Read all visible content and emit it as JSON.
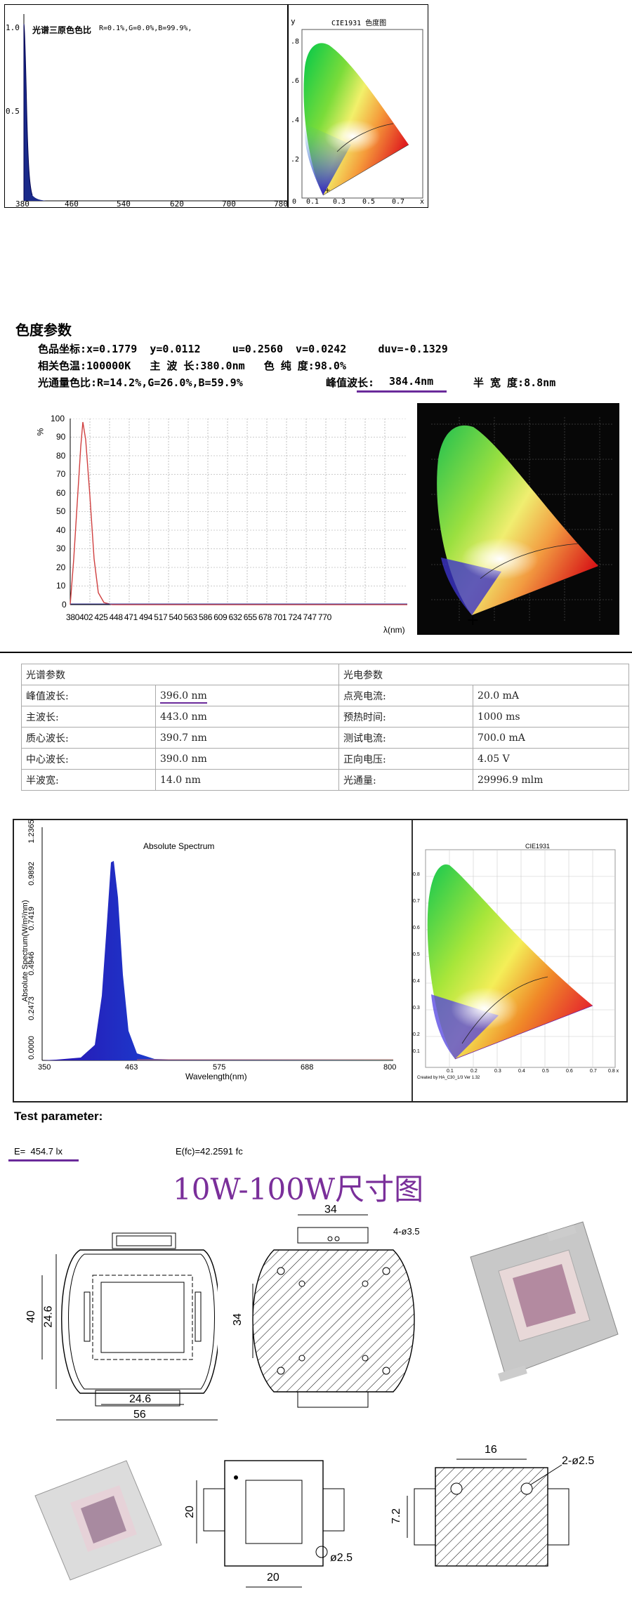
{
  "section1": {
    "spectrum": {
      "title": "光谱三原色色比",
      "ratio": "R=0.1%,G=0.0%,B=99.9%,",
      "y_ticks": [
        "1.0",
        "0.5"
      ],
      "x_ticks": [
        "380",
        "460",
        "540",
        "620",
        "700",
        "780"
      ]
    },
    "cie": {
      "title": "CIE1931 色度图",
      "y_axis_label": "y",
      "x_axis_label": "x",
      "y_ticks": [
        ".8",
        ".6",
        ".4",
        ".2"
      ],
      "x_ticks": [
        "0",
        "0.1",
        "0.3",
        "0.5",
        "0.7"
      ]
    }
  },
  "color_params": {
    "heading": "色度参数",
    "row1": "色品坐标:x=0.1779  y=0.0112     u=0.2560  v=0.0242     duv=-0.1329",
    "row2": "相关色温:100000K   主 波 长:380.0nm   色 纯 度:98.0%",
    "row3_a": "光通量色比:R=14.2%,G=26.0%,B=59.9%",
    "row3_b_label": "峰值波长:",
    "row3_b_value": "384.4nm",
    "row3_c": "半 宽 度:8.8nm"
  },
  "section2": {
    "y_label": "%",
    "x_label": "λ(nm)",
    "y_ticks": [
      "100",
      "90",
      "80",
      "70",
      "60",
      "50",
      "40",
      "30",
      "20",
      "10",
      "0"
    ],
    "x_ticks": [
      "380",
      "402",
      "425",
      "448",
      "471",
      "494",
      "517",
      "540",
      "563",
      "586",
      "609",
      "632",
      "655",
      "678",
      "701",
      "724",
      "747",
      "770"
    ]
  },
  "param_table": {
    "left_header": "光谱参数",
    "right_header": "光电参数",
    "rows": [
      {
        "l_label": "峰值波长:",
        "l_value": "396.0  nm",
        "r_label": "点亮电流:",
        "r_value": "20.0  mA"
      },
      {
        "l_label": "主波长:",
        "l_value": "443.0  nm",
        "r_label": "预热时间:",
        "r_value": "1000  ms"
      },
      {
        "l_label": "质心波长:",
        "l_value": "390.7  nm",
        "r_label": "测试电流:",
        "r_value": "700.0  mA"
      },
      {
        "l_label": "中心波长:",
        "l_value": "390.0  nm",
        "r_label": "正向电压:",
        "r_value": "4.05  V"
      },
      {
        "l_label": "半波宽:",
        "l_value": "14.0  nm",
        "r_label": "光通量:",
        "r_value": "29996.9  mlm"
      }
    ]
  },
  "section3": {
    "spectrum_title": "Absolute Spectrum",
    "y_label": "Absolute Spectrum(W/m²/nm)",
    "x_label": "Wavelength(nm)",
    "y_ticks": [
      "0.0000",
      "0.2473",
      "0.4946",
      "0.7419",
      "0.9892",
      "1.2365"
    ],
    "x_ticks": [
      "350",
      "463",
      "575",
      "688",
      "800"
    ],
    "cie_title": "CIE1931",
    "cie_caption": "Created by HA_C30_1/3 Ver 1.32",
    "cie_y_ticks": [
      "0.8",
      "0.7",
      "0.6",
      "0.5",
      "0.4",
      "0.3",
      "0.2",
      "0.1"
    ],
    "cie_x_ticks": [
      "0.1",
      "0.2",
      "0.3",
      "0.4",
      "0.5",
      "0.6",
      "0.7",
      "0.8 x"
    ]
  },
  "test": {
    "heading": "Test parameter:",
    "e_lx": "E=  454.7 lx",
    "e_fc": "E(fc)=42.2591 fc"
  },
  "dimensions": {
    "title": "10W-100W尺寸图",
    "d1": {
      "width_label": "56",
      "inner_w": "24.6",
      "h_label": "40",
      "inner_h": "24.6"
    },
    "d2": {
      "top": "34",
      "hole": "4-ø3.5",
      "side": "34"
    },
    "d4": {
      "side": "20",
      "bottom": "20",
      "hole": "ø2.5"
    },
    "d5": {
      "top": "16",
      "hole": "2-ø2.5",
      "side": "7.2"
    }
  }
}
